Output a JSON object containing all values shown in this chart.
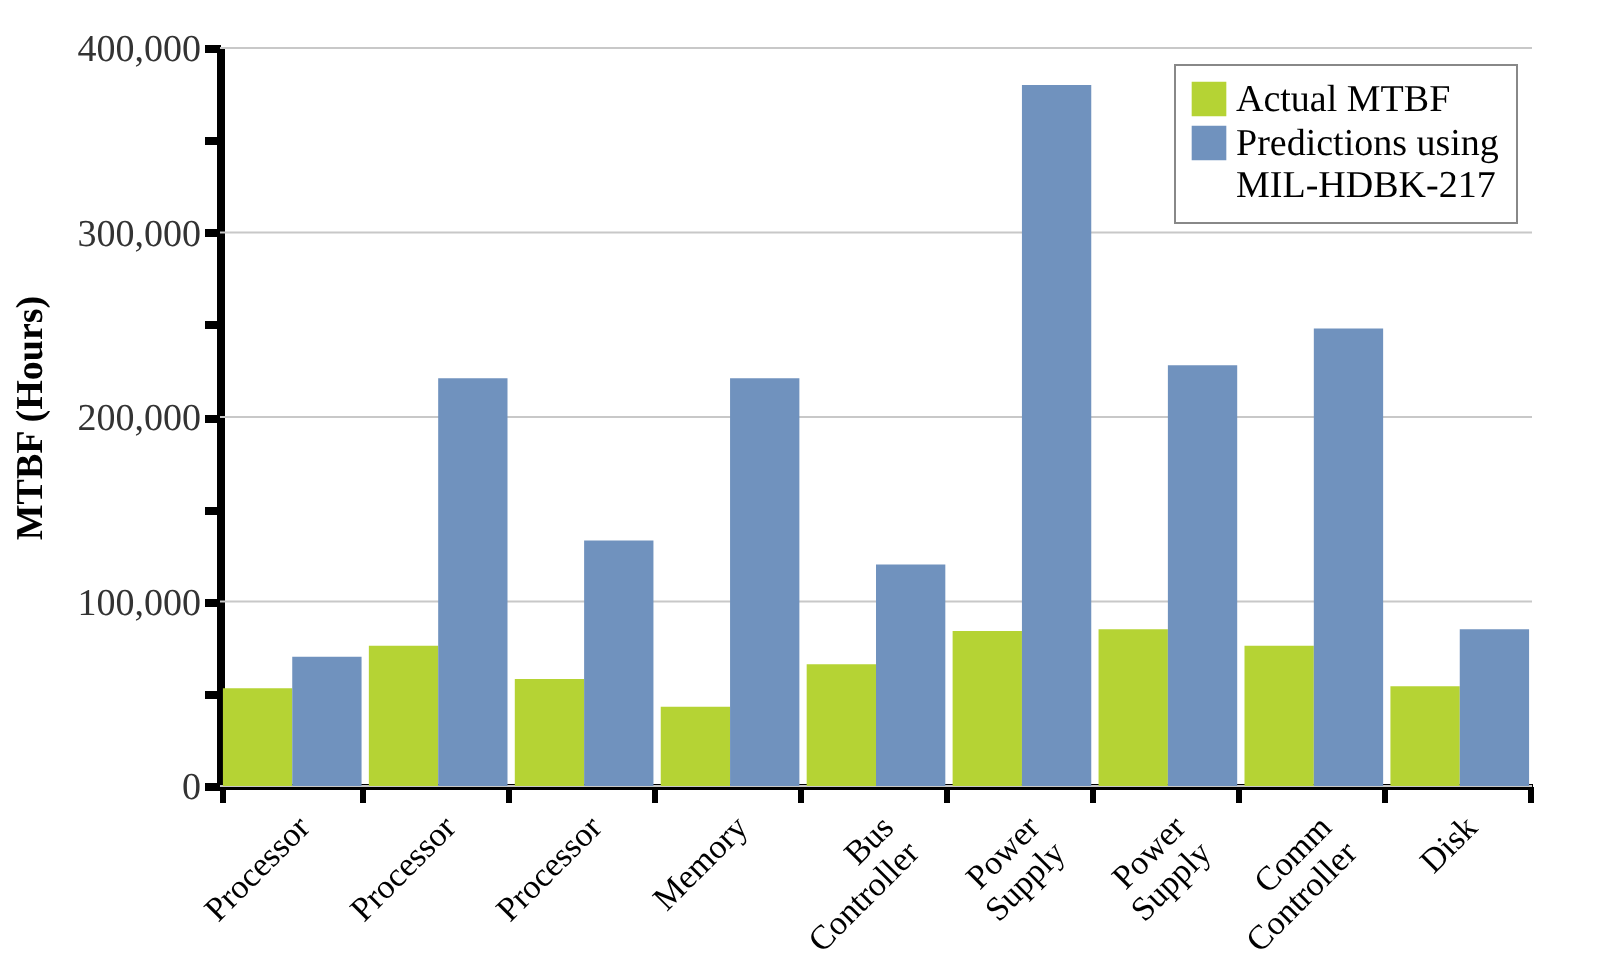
{
  "chart_data": {
    "type": "bar",
    "ylabel": "MTBF (Hours)",
    "categories": [
      "Processor",
      "Processor",
      "Processor",
      "Memory",
      "Bus Controller",
      "Power Supply",
      "Power Supply",
      "Comm Controller",
      "Disk"
    ],
    "series": [
      {
        "name": "Actual MTBF",
        "color": "#b5d334",
        "values": [
          53000,
          76000,
          58000,
          43000,
          66000,
          84000,
          85000,
          76000,
          54000
        ]
      },
      {
        "name": "Predictions using MIL-HDBK-217",
        "color": "#7092be",
        "values": [
          70000,
          221000,
          133000,
          221000,
          120000,
          380000,
          228000,
          248000,
          85000
        ]
      }
    ],
    "ylim": [
      0,
      400000
    ],
    "yticks": [
      {
        "value": 0,
        "label": "0"
      },
      {
        "value": 50000,
        "label": null
      },
      {
        "value": 100000,
        "label": "100,000"
      },
      {
        "value": 150000,
        "label": null
      },
      {
        "value": 200000,
        "label": "200,000"
      },
      {
        "value": 250000,
        "label": null
      },
      {
        "value": 300000,
        "label": "300,000"
      },
      {
        "value": 350000,
        "label": null
      },
      {
        "value": 400000,
        "label": "400,000"
      }
    ],
    "grid": "y",
    "legend": "top right"
  }
}
